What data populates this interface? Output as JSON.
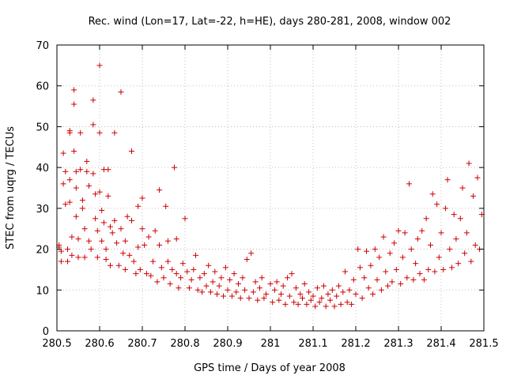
{
  "chart_data": {
    "type": "scatter",
    "title": "Rec. wind (Lon=17, Lat=-22, h=HE), days 280-281, 2008, window 002",
    "xlabel": "GPS time / Days of year 2008",
    "ylabel": "STEC from uqrg / TECUs",
    "xlim": [
      280.5,
      281.5
    ],
    "ylim": [
      0,
      70
    ],
    "xticks": [
      "280.5",
      "280.6",
      "280.7",
      "280.8",
      "280.9",
      "281",
      "281.1",
      "281.2",
      "281.3",
      "281.4",
      "281.5"
    ],
    "yticks": [
      "0",
      "10",
      "20",
      "30",
      "40",
      "50",
      "60",
      "70"
    ],
    "grid": true,
    "marker": "+",
    "color": "#cc0000",
    "points": [
      [
        280.505,
        20.5
      ],
      [
        280.505,
        21.0
      ],
      [
        280.51,
        17.0
      ],
      [
        280.51,
        19.5
      ],
      [
        280.515,
        36.0
      ],
      [
        280.515,
        43.5
      ],
      [
        280.52,
        39.0
      ],
      [
        280.52,
        31.0
      ],
      [
        280.525,
        17.0
      ],
      [
        280.525,
        20.0
      ],
      [
        280.53,
        48.5
      ],
      [
        280.53,
        49.0
      ],
      [
        280.53,
        37.0
      ],
      [
        280.53,
        31.5
      ],
      [
        280.535,
        23.0
      ],
      [
        280.535,
        18.5
      ],
      [
        280.54,
        59.0
      ],
      [
        280.54,
        55.5
      ],
      [
        280.54,
        44.0
      ],
      [
        280.545,
        39.0
      ],
      [
        280.545,
        35.0
      ],
      [
        280.545,
        28.0
      ],
      [
        280.55,
        22.5
      ],
      [
        280.55,
        18.0
      ],
      [
        280.555,
        48.5
      ],
      [
        280.555,
        39.5
      ],
      [
        280.56,
        32.0
      ],
      [
        280.56,
        30.0
      ],
      [
        280.565,
        25.0
      ],
      [
        280.565,
        18.0
      ],
      [
        280.57,
        41.5
      ],
      [
        280.57,
        39.0
      ],
      [
        280.575,
        35.5
      ],
      [
        280.575,
        22.0
      ],
      [
        280.58,
        20.0
      ],
      [
        280.585,
        56.5
      ],
      [
        280.585,
        50.5
      ],
      [
        280.585,
        38.5
      ],
      [
        280.59,
        33.5
      ],
      [
        280.59,
        27.5
      ],
      [
        280.595,
        24.5
      ],
      [
        280.595,
        18.0
      ],
      [
        280.6,
        65.0
      ],
      [
        280.6,
        48.5
      ],
      [
        280.6,
        34.0
      ],
      [
        280.605,
        29.5
      ],
      [
        280.605,
        22.0
      ],
      [
        280.61,
        39.5
      ],
      [
        280.61,
        26.5
      ],
      [
        280.615,
        20.0
      ],
      [
        280.615,
        17.5
      ],
      [
        280.62,
        39.5
      ],
      [
        280.62,
        33.0
      ],
      [
        280.625,
        25.5
      ],
      [
        280.625,
        16.0
      ],
      [
        280.63,
        24.0
      ],
      [
        280.635,
        48.5
      ],
      [
        280.635,
        27.0
      ],
      [
        280.64,
        21.5
      ],
      [
        280.645,
        16.0
      ],
      [
        280.65,
        58.5
      ],
      [
        280.65,
        25.0
      ],
      [
        280.655,
        19.0
      ],
      [
        280.66,
        22.0
      ],
      [
        280.66,
        15.0
      ],
      [
        280.665,
        28.0
      ],
      [
        280.67,
        18.5
      ],
      [
        280.675,
        44.0
      ],
      [
        280.675,
        27.0
      ],
      [
        280.68,
        17.0
      ],
      [
        280.685,
        14.0
      ],
      [
        280.69,
        30.5
      ],
      [
        280.69,
        20.5
      ],
      [
        280.695,
        15.0
      ],
      [
        280.7,
        32.5
      ],
      [
        280.7,
        25.0
      ],
      [
        280.705,
        21.0
      ],
      [
        280.71,
        14.0
      ],
      [
        280.715,
        23.0
      ],
      [
        280.72,
        13.5
      ],
      [
        280.725,
        17.0
      ],
      [
        280.73,
        24.5
      ],
      [
        280.735,
        12.0
      ],
      [
        280.74,
        34.5
      ],
      [
        280.74,
        21.0
      ],
      [
        280.745,
        15.5
      ],
      [
        280.75,
        13.0
      ],
      [
        280.755,
        30.5
      ],
      [
        280.76,
        22.0
      ],
      [
        280.76,
        17.0
      ],
      [
        280.765,
        11.5
      ],
      [
        280.77,
        15.0
      ],
      [
        280.775,
        40.0
      ],
      [
        280.78,
        22.5
      ],
      [
        280.78,
        14.0
      ],
      [
        280.785,
        10.5
      ],
      [
        280.79,
        13.0
      ],
      [
        280.795,
        16.5
      ],
      [
        280.8,
        27.5
      ],
      [
        280.805,
        14.5
      ],
      [
        280.81,
        10.5
      ],
      [
        280.815,
        12.5
      ],
      [
        280.82,
        15.0
      ],
      [
        280.825,
        18.5
      ],
      [
        280.83,
        10.0
      ],
      [
        280.835,
        13.0
      ],
      [
        280.84,
        9.5
      ],
      [
        280.845,
        14.0
      ],
      [
        280.85,
        11.0
      ],
      [
        280.855,
        16.0
      ],
      [
        280.86,
        9.5
      ],
      [
        280.865,
        12.0
      ],
      [
        280.87,
        14.5
      ],
      [
        280.875,
        9.0
      ],
      [
        280.88,
        11.0
      ],
      [
        280.885,
        13.0
      ],
      [
        280.89,
        8.5
      ],
      [
        280.895,
        15.5
      ],
      [
        280.9,
        10.0
      ],
      [
        280.905,
        12.5
      ],
      [
        280.91,
        8.5
      ],
      [
        280.915,
        14.0
      ],
      [
        280.92,
        9.5
      ],
      [
        280.925,
        11.5
      ],
      [
        280.93,
        8.0
      ],
      [
        280.935,
        13.0
      ],
      [
        280.94,
        10.0
      ],
      [
        280.945,
        17.5
      ],
      [
        280.95,
        8.0
      ],
      [
        280.955,
        19.0
      ],
      [
        280.96,
        9.5
      ],
      [
        280.965,
        12.0
      ],
      [
        280.97,
        7.5
      ],
      [
        280.975,
        10.5
      ],
      [
        280.98,
        13.0
      ],
      [
        280.985,
        8.0
      ],
      [
        280.99,
        9.0
      ],
      [
        281.0,
        11.5
      ],
      [
        281.005,
        7.0
      ],
      [
        281.01,
        10.0
      ],
      [
        281.015,
        12.0
      ],
      [
        281.02,
        7.5
      ],
      [
        281.025,
        9.0
      ],
      [
        281.03,
        11.0
      ],
      [
        281.035,
        6.5
      ],
      [
        281.04,
        13.0
      ],
      [
        281.045,
        8.5
      ],
      [
        281.05,
        14.0
      ],
      [
        281.055,
        7.0
      ],
      [
        281.06,
        10.5
      ],
      [
        281.065,
        6.5
      ],
      [
        281.07,
        9.0
      ],
      [
        281.075,
        8.0
      ],
      [
        281.08,
        11.5
      ],
      [
        281.085,
        6.5
      ],
      [
        281.09,
        9.5
      ],
      [
        281.095,
        7.5
      ],
      [
        281.1,
        8.5
      ],
      [
        281.105,
        6.0
      ],
      [
        281.11,
        10.5
      ],
      [
        281.115,
        7.0
      ],
      [
        281.12,
        8.0
      ],
      [
        281.125,
        11.0
      ],
      [
        281.13,
        6.0
      ],
      [
        281.135,
        9.0
      ],
      [
        281.14,
        7.5
      ],
      [
        281.145,
        10.0
      ],
      [
        281.15,
        6.0
      ],
      [
        281.155,
        8.5
      ],
      [
        281.16,
        11.0
      ],
      [
        281.165,
        6.5
      ],
      [
        281.17,
        9.5
      ],
      [
        281.175,
        14.5
      ],
      [
        281.18,
        7.0
      ],
      [
        281.185,
        10.0
      ],
      [
        281.19,
        6.5
      ],
      [
        281.195,
        12.5
      ],
      [
        281.2,
        9.0
      ],
      [
        281.205,
        20.0
      ],
      [
        281.21,
        15.5
      ],
      [
        281.215,
        8.0
      ],
      [
        281.22,
        13.0
      ],
      [
        281.225,
        19.5
      ],
      [
        281.23,
        10.5
      ],
      [
        281.235,
        16.0
      ],
      [
        281.24,
        9.0
      ],
      [
        281.245,
        20.0
      ],
      [
        281.25,
        12.5
      ],
      [
        281.255,
        18.0
      ],
      [
        281.26,
        10.0
      ],
      [
        281.265,
        23.0
      ],
      [
        281.27,
        14.5
      ],
      [
        281.275,
        11.0
      ],
      [
        281.28,
        19.0
      ],
      [
        281.285,
        12.0
      ],
      [
        281.29,
        21.5
      ],
      [
        281.295,
        15.0
      ],
      [
        281.3,
        24.5
      ],
      [
        281.305,
        11.5
      ],
      [
        281.31,
        18.0
      ],
      [
        281.315,
        24.0
      ],
      [
        281.32,
        13.0
      ],
      [
        281.325,
        36.0
      ],
      [
        281.33,
        20.0
      ],
      [
        281.335,
        12.5
      ],
      [
        281.34,
        16.5
      ],
      [
        281.345,
        22.5
      ],
      [
        281.35,
        14.0
      ],
      [
        281.355,
        24.5
      ],
      [
        281.36,
        12.5
      ],
      [
        281.365,
        27.5
      ],
      [
        281.37,
        15.0
      ],
      [
        281.375,
        21.0
      ],
      [
        281.38,
        33.5
      ],
      [
        281.385,
        14.5
      ],
      [
        281.39,
        31.0
      ],
      [
        281.395,
        18.0
      ],
      [
        281.4,
        24.0
      ],
      [
        281.405,
        15.0
      ],
      [
        281.41,
        30.0
      ],
      [
        281.415,
        37.0
      ],
      [
        281.42,
        20.0
      ],
      [
        281.425,
        15.5
      ],
      [
        281.43,
        28.5
      ],
      [
        281.435,
        22.5
      ],
      [
        281.44,
        16.5
      ],
      [
        281.445,
        27.5
      ],
      [
        281.45,
        35.0
      ],
      [
        281.455,
        19.0
      ],
      [
        281.46,
        24.0
      ],
      [
        281.465,
        41.0
      ],
      [
        281.47,
        17.0
      ],
      [
        281.475,
        33.0
      ],
      [
        281.48,
        21.0
      ],
      [
        281.485,
        37.5
      ],
      [
        281.49,
        20.0
      ],
      [
        281.495,
        28.5
      ]
    ]
  }
}
